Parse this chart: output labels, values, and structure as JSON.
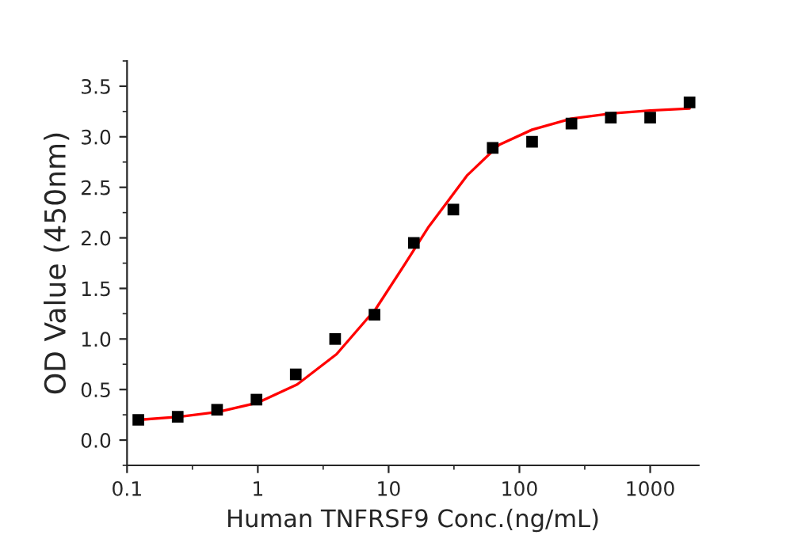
{
  "chart_data": {
    "type": "scatter",
    "xlabel": "Human TNFRSF9 Conc.(ng/mL)",
    "ylabel": "OD Value (450nm)",
    "log": "x",
    "xlim": [
      0.1,
      2350
    ],
    "ylim": [
      -0.25,
      3.75
    ],
    "xticks": [
      0.1,
      1,
      10,
      100,
      1000
    ],
    "yticks": [
      {
        "value": 0,
        "label": "0.0"
      },
      0.5,
      {
        "value": 1,
        "label": "1.0"
      },
      1.5,
      {
        "value": 2,
        "label": "2.0"
      },
      2.5,
      {
        "value": 3,
        "label": "3.0"
      },
      3.5
    ],
    "grid": false,
    "series": [
      {
        "marker": "square",
        "color": "#000000",
        "x": [
          0.122,
          0.244,
          0.488,
          0.977,
          1.95,
          3.9,
          7.8,
          15.6,
          31.25,
          62.5,
          125,
          250,
          500,
          1000,
          2000
        ],
        "values": [
          0.2,
          0.23,
          0.3,
          0.4,
          0.65,
          1.0,
          1.24,
          1.95,
          2.28,
          2.89,
          2.95,
          3.13,
          3.19,
          3.19,
          3.34
        ]
      },
      {
        "type": "line",
        "marker": "none",
        "color": "#ff0000",
        "x": [
          0.122,
          0.25,
          0.5,
          1,
          2,
          4,
          8,
          13,
          20,
          40,
          70,
          125,
          250,
          500,
          1000,
          2000
        ],
        "values": [
          0.2,
          0.23,
          0.28,
          0.37,
          0.55,
          0.85,
          1.3,
          1.72,
          2.1,
          2.62,
          2.92,
          3.07,
          3.18,
          3.23,
          3.26,
          3.28
        ]
      }
    ]
  }
}
